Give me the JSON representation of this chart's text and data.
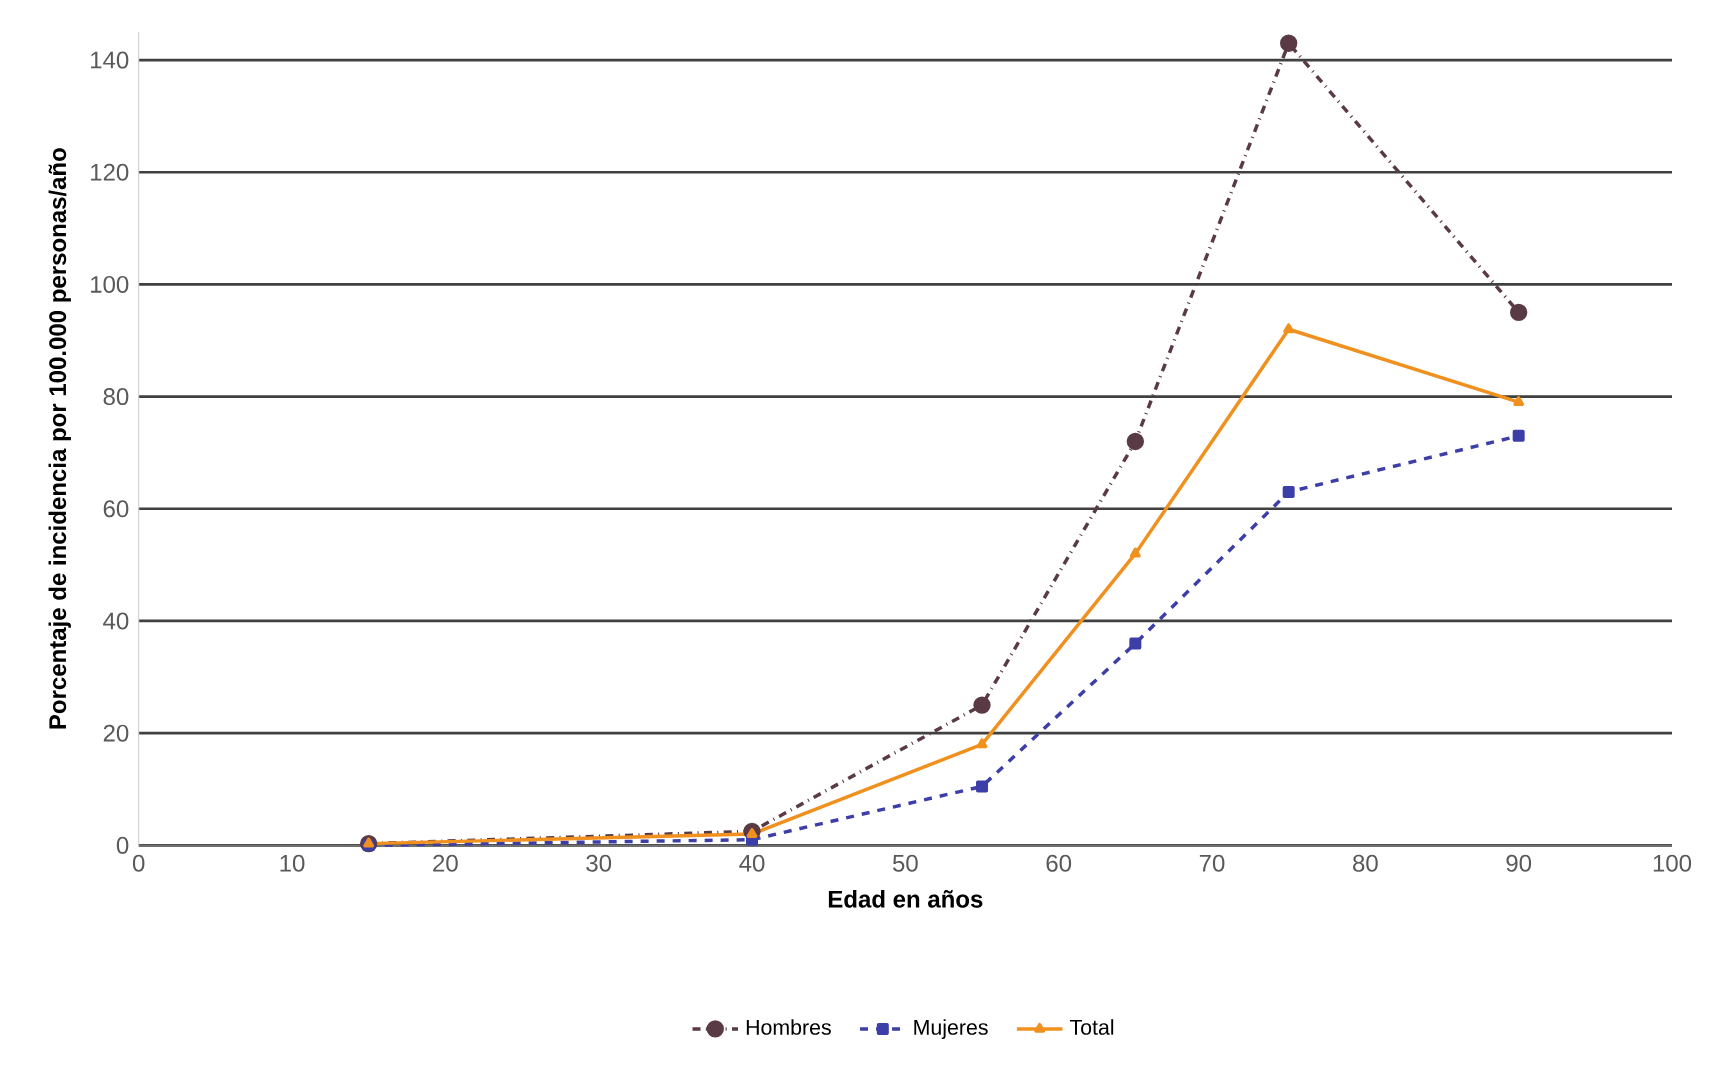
{
  "chart_data": {
    "type": "line",
    "xlabel": "Edad en años",
    "ylabel": "Porcentaje de incidencia por 100.000 personas/año",
    "x": [
      15,
      40,
      55,
      65,
      75,
      90
    ],
    "series": [
      {
        "name": "Hombres",
        "color": "#5a3a45",
        "line_style": "dashdot",
        "marker": "circle",
        "values": [
          0.3,
          2.5,
          25,
          72,
          143,
          95
        ]
      },
      {
        "name": "Mujeres",
        "color": "#3d3fa8",
        "line_style": "dashed",
        "marker": "square",
        "values": [
          0,
          1,
          10.5,
          36,
          63,
          73
        ]
      },
      {
        "name": "Total",
        "color": "#f0901e",
        "line_style": "solid",
        "marker": "triangle",
        "values": [
          0.3,
          2,
          18,
          52,
          92,
          79
        ]
      }
    ],
    "xlim": [
      0,
      100
    ],
    "xticks": [
      0,
      10,
      20,
      30,
      40,
      50,
      60,
      70,
      80,
      90,
      100
    ],
    "ylim": [
      0,
      145
    ],
    "yticks": [
      0,
      20,
      40,
      60,
      80,
      100,
      120,
      140
    ],
    "grid": "y",
    "legend": "bottom"
  }
}
